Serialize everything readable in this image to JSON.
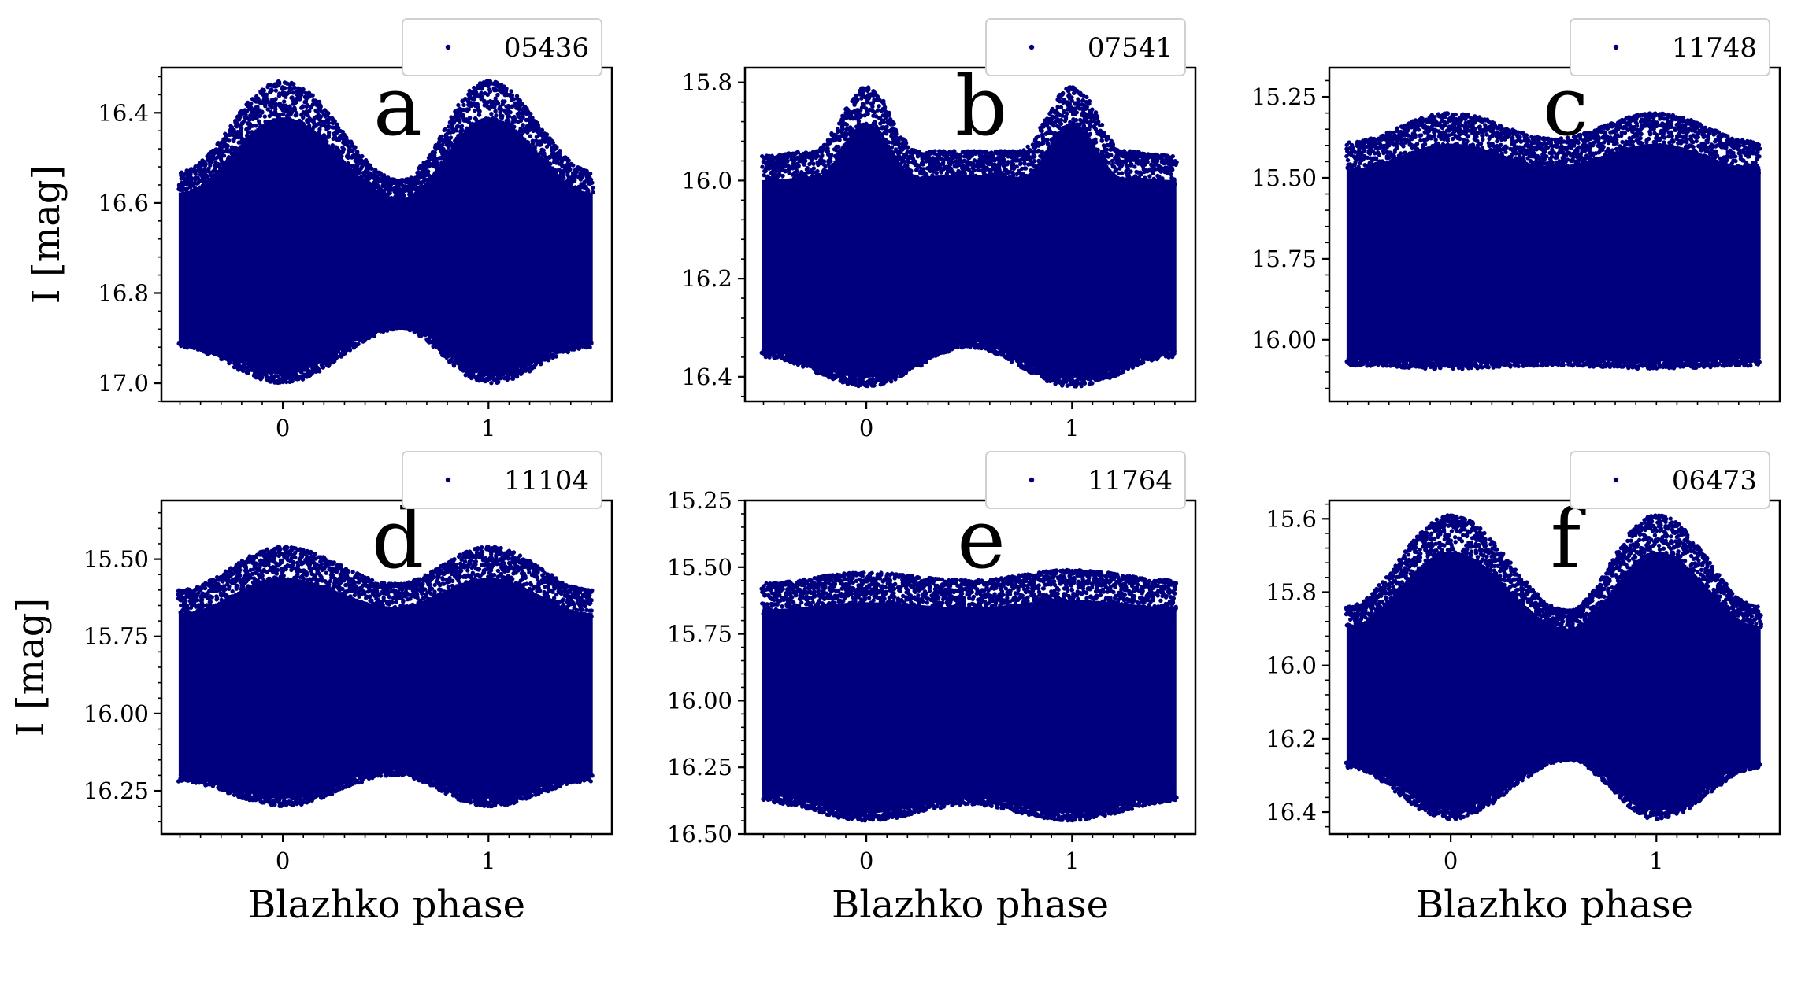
{
  "figure": {
    "x_axis_title": "Blazhko phase",
    "y_axis_title": "I [mag]",
    "point_color": "#00007f"
  },
  "chart_data": [
    {
      "type": "scatter",
      "panel": "a",
      "series": [
        {
          "name": "05436"
        }
      ],
      "xlabel": "",
      "ylabel": "I [mag]",
      "xlim": [
        -0.59,
        1.6
      ],
      "ylim": [
        17.04,
        16.3
      ],
      "y_inverted": true,
      "xticks": [
        "0",
        "1"
      ],
      "yticks": [
        "16.4",
        "16.6",
        "16.8",
        "17.0"
      ],
      "bright_envelope": [
        [
          -0.5,
          16.53
        ],
        [
          0.0,
          16.33
        ],
        [
          0.57,
          16.55
        ],
        [
          1.0,
          16.33
        ],
        [
          1.5,
          16.53
        ]
      ],
      "faint_envelope": [
        [
          -0.5,
          16.92
        ],
        [
          0.0,
          17.0
        ],
        [
          0.57,
          16.88
        ],
        [
          1.0,
          17.0
        ],
        [
          1.5,
          16.92
        ]
      ],
      "x_range": [
        -0.5,
        1.5
      ]
    },
    {
      "type": "scatter",
      "panel": "b",
      "series": [
        {
          "name": "07541"
        }
      ],
      "xlabel": "",
      "ylabel": "",
      "xlim": [
        -0.59,
        1.6
      ],
      "ylim": [
        16.45,
        15.77
      ],
      "y_inverted": true,
      "xticks": [
        "0",
        "1"
      ],
      "yticks": [
        "15.8",
        "16.0",
        "16.2",
        "16.4"
      ],
      "bright_envelope": [
        [
          -0.5,
          15.95
        ],
        [
          -0.25,
          15.94
        ],
        [
          0.0,
          15.81
        ],
        [
          0.25,
          15.94
        ],
        [
          0.75,
          15.94
        ],
        [
          1.0,
          15.81
        ],
        [
          1.25,
          15.94
        ],
        [
          1.5,
          15.95
        ]
      ],
      "faint_envelope": [
        [
          -0.5,
          16.36
        ],
        [
          0.0,
          16.42
        ],
        [
          0.5,
          16.34
        ],
        [
          1.0,
          16.42
        ],
        [
          1.5,
          16.36
        ]
      ],
      "x_range": [
        -0.5,
        1.5
      ]
    },
    {
      "type": "scatter",
      "panel": "c",
      "series": [
        {
          "name": "11748"
        }
      ],
      "xlabel": "",
      "ylabel": "",
      "xlim": [
        -0.59,
        1.6
      ],
      "ylim": [
        16.19,
        15.16
      ],
      "y_inverted": true,
      "xticks": [],
      "yticks": [
        "15.25",
        "15.50",
        "15.75",
        "16.00"
      ],
      "bright_envelope": [
        [
          -0.5,
          15.39
        ],
        [
          0.0,
          15.3
        ],
        [
          0.5,
          15.38
        ],
        [
          1.0,
          15.3
        ],
        [
          1.5,
          15.39
        ]
      ],
      "faint_envelope": [
        [
          -0.5,
          16.08
        ],
        [
          0.0,
          16.09
        ],
        [
          0.5,
          16.08
        ],
        [
          1.0,
          16.09
        ],
        [
          1.5,
          16.08
        ]
      ],
      "x_range": [
        -0.5,
        1.5
      ]
    },
    {
      "type": "scatter",
      "panel": "d",
      "series": [
        {
          "name": "11104"
        }
      ],
      "xlabel": "Blazhko phase",
      "ylabel": "I [mag]",
      "xlim": [
        -0.59,
        1.6
      ],
      "ylim": [
        16.39,
        15.31
      ],
      "y_inverted": true,
      "xticks": [
        "0",
        "1"
      ],
      "yticks": [
        "15.50",
        "15.75",
        "16.00",
        "16.25"
      ],
      "bright_envelope": [
        [
          -0.5,
          15.6
        ],
        [
          0.0,
          15.46
        ],
        [
          0.55,
          15.58
        ],
        [
          1.0,
          15.46
        ],
        [
          1.5,
          15.6
        ]
      ],
      "faint_envelope": [
        [
          -0.5,
          16.22
        ],
        [
          0.0,
          16.3
        ],
        [
          0.55,
          16.2
        ],
        [
          1.0,
          16.3
        ],
        [
          1.5,
          16.22
        ]
      ],
      "x_range": [
        -0.5,
        1.5
      ]
    },
    {
      "type": "scatter",
      "panel": "e",
      "series": [
        {
          "name": "11764"
        }
      ],
      "xlabel": "Blazhko phase",
      "ylabel": "",
      "xlim": [
        -0.59,
        1.6
      ],
      "ylim": [
        16.5,
        15.25
      ],
      "y_inverted": true,
      "xticks": [
        "0",
        "1"
      ],
      "yticks": [
        "15.25",
        "15.50",
        "15.75",
        "16.00",
        "16.25",
        "16.50"
      ],
      "bright_envelope": [
        [
          -0.5,
          15.56
        ],
        [
          0.0,
          15.52
        ],
        [
          0.5,
          15.55
        ],
        [
          1.0,
          15.51
        ],
        [
          1.5,
          15.55
        ]
      ],
      "faint_envelope": [
        [
          -0.5,
          16.38
        ],
        [
          0.0,
          16.45
        ],
        [
          0.5,
          16.39
        ],
        [
          1.0,
          16.45
        ],
        [
          1.5,
          16.38
        ]
      ],
      "x_range": [
        -0.5,
        1.5
      ]
    },
    {
      "type": "scatter",
      "panel": "f",
      "series": [
        {
          "name": "06473"
        }
      ],
      "xlabel": "Blazhko phase",
      "ylabel": "",
      "xlim": [
        -0.59,
        1.6
      ],
      "ylim": [
        16.46,
        15.55
      ],
      "y_inverted": true,
      "xticks": [
        "0",
        "1"
      ],
      "yticks": [
        "15.6",
        "15.8",
        "16.0",
        "16.2",
        "16.4"
      ],
      "bright_envelope": [
        [
          -0.5,
          15.84
        ],
        [
          0.0,
          15.59
        ],
        [
          0.57,
          15.85
        ],
        [
          1.0,
          15.59
        ],
        [
          1.5,
          15.84
        ]
      ],
      "faint_envelope": [
        [
          -0.5,
          16.28
        ],
        [
          0.0,
          16.42
        ],
        [
          0.57,
          16.26
        ],
        [
          1.0,
          16.42
        ],
        [
          1.5,
          16.28
        ]
      ],
      "x_range": [
        -0.5,
        1.5
      ]
    }
  ]
}
